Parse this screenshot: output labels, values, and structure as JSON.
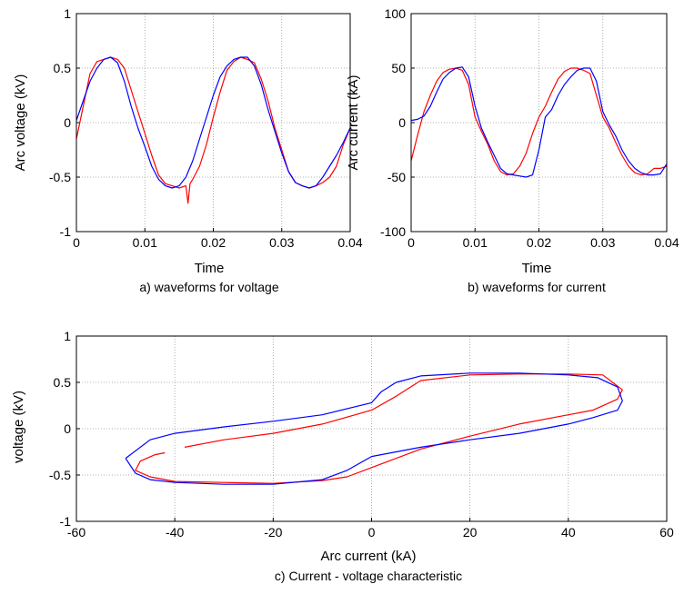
{
  "colors": {
    "measured": "#ff0000",
    "model": "#0000ff",
    "grid": "#9a9a9a",
    "axes": "#000000"
  },
  "charts": [
    {
      "id": "a",
      "caption": "a) waveforms for voltage",
      "chart_data": {
        "type": "line",
        "xlabel": "Time",
        "ylabel": "Arc voltage (kV)",
        "xlim": [
          0,
          0.04
        ],
        "ylim": [
          -1,
          1
        ],
        "xticks": [
          "0",
          "0.01",
          "0.02",
          "0.03",
          "0.04"
        ],
        "yticks": [
          "1",
          "0.5",
          "0",
          "-0.5",
          "-1"
        ],
        "grid": true,
        "series": [
          {
            "color": "red",
            "x": [
              0,
              0.001,
              0.002,
              0.003,
              0.004,
              0.005,
              0.006,
              0.007,
              0.008,
              0.009,
              0.01,
              0.011,
              0.012,
              0.013,
              0.014,
              0.015,
              0.016,
              0.0163,
              0.0166,
              0.017,
              0.018,
              0.019,
              0.02,
              0.021,
              0.022,
              0.023,
              0.024,
              0.025,
              0.026,
              0.027,
              0.028,
              0.029,
              0.03,
              0.031,
              0.032,
              0.033,
              0.034,
              0.035,
              0.036,
              0.037,
              0.038,
              0.039,
              0.04
            ],
            "y": [
              -0.15,
              0.15,
              0.45,
              0.56,
              0.58,
              0.6,
              0.58,
              0.5,
              0.3,
              0.1,
              -0.1,
              -0.3,
              -0.48,
              -0.56,
              -0.58,
              -0.6,
              -0.58,
              -0.74,
              -0.56,
              -0.52,
              -0.4,
              -0.2,
              0.05,
              0.28,
              0.48,
              0.56,
              0.6,
              0.58,
              0.55,
              0.4,
              0.2,
              -0.05,
              -0.25,
              -0.45,
              -0.55,
              -0.58,
              -0.6,
              -0.58,
              -0.55,
              -0.5,
              -0.4,
              -0.2,
              -0.05
            ]
          },
          {
            "color": "blue",
            "x": [
              0,
              0.001,
              0.002,
              0.003,
              0.004,
              0.005,
              0.006,
              0.007,
              0.008,
              0.009,
              0.01,
              0.011,
              0.012,
              0.013,
              0.014,
              0.015,
              0.016,
              0.017,
              0.018,
              0.019,
              0.02,
              0.021,
              0.022,
              0.023,
              0.024,
              0.025,
              0.026,
              0.027,
              0.028,
              0.029,
              0.03,
              0.031,
              0.032,
              0.033,
              0.034,
              0.035,
              0.036,
              0.037,
              0.038,
              0.039,
              0.04
            ],
            "y": [
              0.02,
              0.2,
              0.38,
              0.5,
              0.58,
              0.6,
              0.55,
              0.38,
              0.15,
              -0.05,
              -0.22,
              -0.4,
              -0.52,
              -0.58,
              -0.6,
              -0.58,
              -0.5,
              -0.35,
              -0.15,
              0.05,
              0.25,
              0.42,
              0.52,
              0.58,
              0.6,
              0.6,
              0.52,
              0.35,
              0.12,
              -0.08,
              -0.28,
              -0.45,
              -0.55,
              -0.58,
              -0.6,
              -0.58,
              -0.5,
              -0.4,
              -0.3,
              -0.18,
              -0.05
            ]
          }
        ]
      }
    },
    {
      "id": "b",
      "caption": "b) waveforms for current",
      "chart_data": {
        "type": "line",
        "xlabel": "Time",
        "ylabel": "Arc current (kA)",
        "xlim": [
          0,
          0.04
        ],
        "ylim": [
          -100,
          100
        ],
        "xticks": [
          "0",
          "0.01",
          "0.02",
          "0.03",
          "0.04"
        ],
        "yticks": [
          "100",
          "50",
          "0",
          "-50",
          "-100"
        ],
        "grid": true,
        "series": [
          {
            "color": "red",
            "x": [
              0,
              0.001,
              0.002,
              0.003,
              0.004,
              0.005,
              0.006,
              0.007,
              0.008,
              0.009,
              0.01,
              0.011,
              0.012,
              0.013,
              0.014,
              0.015,
              0.016,
              0.017,
              0.018,
              0.019,
              0.02,
              0.021,
              0.022,
              0.023,
              0.024,
              0.025,
              0.026,
              0.027,
              0.028,
              0.029,
              0.03,
              0.031,
              0.032,
              0.033,
              0.034,
              0.035,
              0.036,
              0.037,
              0.038,
              0.039,
              0.04
            ],
            "y": [
              -35,
              -12,
              10,
              25,
              38,
              46,
              49,
              50,
              48,
              35,
              5,
              -8,
              -20,
              -35,
              -45,
              -48,
              -47,
              -40,
              -28,
              -10,
              5,
              15,
              28,
              40,
              47,
              50,
              50,
              48,
              45,
              25,
              5,
              -5,
              -18,
              -30,
              -40,
              -46,
              -48,
              -47,
              -42,
              -42,
              -40
            ]
          },
          {
            "color": "blue",
            "x": [
              0,
              0.001,
              0.002,
              0.003,
              0.004,
              0.005,
              0.006,
              0.007,
              0.008,
              0.009,
              0.01,
              0.011,
              0.012,
              0.013,
              0.014,
              0.015,
              0.016,
              0.017,
              0.018,
              0.019,
              0.02,
              0.021,
              0.022,
              0.023,
              0.024,
              0.025,
              0.026,
              0.027,
              0.028,
              0.029,
              0.03,
              0.031,
              0.032,
              0.033,
              0.034,
              0.035,
              0.036,
              0.037,
              0.038,
              0.039,
              0.04
            ],
            "y": [
              2,
              3,
              6,
              15,
              28,
              40,
              46,
              50,
              51,
              42,
              15,
              -5,
              -18,
              -30,
              -42,
              -47,
              -48,
              -49,
              -50,
              -48,
              -25,
              5,
              12,
              25,
              35,
              42,
              48,
              50,
              50,
              38,
              10,
              -2,
              -12,
              -25,
              -35,
              -42,
              -46,
              -48,
              -48,
              -47,
              -38
            ]
          }
        ]
      }
    },
    {
      "id": "c",
      "caption": "c) Current - voltage characteristic",
      "chart_data": {
        "type": "line",
        "xlabel": "Arc current (kA)",
        "ylabel": "voltage (kV)",
        "xlim": [
          -60,
          60
        ],
        "ylim": [
          -1,
          1
        ],
        "xticks": [
          "-60",
          "-40",
          "-20",
          "0",
          "20",
          "40",
          "60"
        ],
        "yticks": [
          "1",
          "0.5",
          "0",
          "-0.5",
          "-1"
        ],
        "grid": true,
        "series": [
          {
            "color": "red",
            "x": [
              -38,
              -30,
              -20,
              -10,
              0,
              5,
              10,
              20,
              30,
              40,
              47,
              49,
              51,
              50,
              45,
              40,
              30,
              20,
              10,
              0,
              -5,
              -10,
              -20,
              -30,
              -40,
              -45,
              -48,
              -47,
              -44,
              -42
            ],
            "y": [
              -0.2,
              -0.12,
              -0.05,
              0.05,
              0.2,
              0.35,
              0.52,
              0.58,
              0.59,
              0.59,
              0.58,
              0.5,
              0.42,
              0.32,
              0.2,
              0.15,
              0.05,
              -0.08,
              -0.22,
              -0.42,
              -0.52,
              -0.56,
              -0.59,
              -0.58,
              -0.57,
              -0.52,
              -0.45,
              -0.35,
              -0.28,
              -0.26
            ]
          },
          {
            "color": "blue",
            "x": [
              -50,
              -45,
              -40,
              -30,
              -20,
              -10,
              0,
              2,
              5,
              10,
              20,
              30,
              40,
              46,
              50,
              51,
              50,
              45,
              40,
              30,
              20,
              10,
              0,
              -5,
              -10,
              -20,
              -30,
              -40,
              -45,
              -48,
              -50
            ],
            "y": [
              -0.32,
              -0.12,
              -0.05,
              0.02,
              0.08,
              0.15,
              0.28,
              0.4,
              0.5,
              0.57,
              0.6,
              0.6,
              0.58,
              0.55,
              0.45,
              0.3,
              0.2,
              0.12,
              0.05,
              -0.05,
              -0.12,
              -0.2,
              -0.3,
              -0.45,
              -0.55,
              -0.6,
              -0.6,
              -0.58,
              -0.55,
              -0.48,
              -0.32
            ]
          }
        ]
      }
    }
  ]
}
